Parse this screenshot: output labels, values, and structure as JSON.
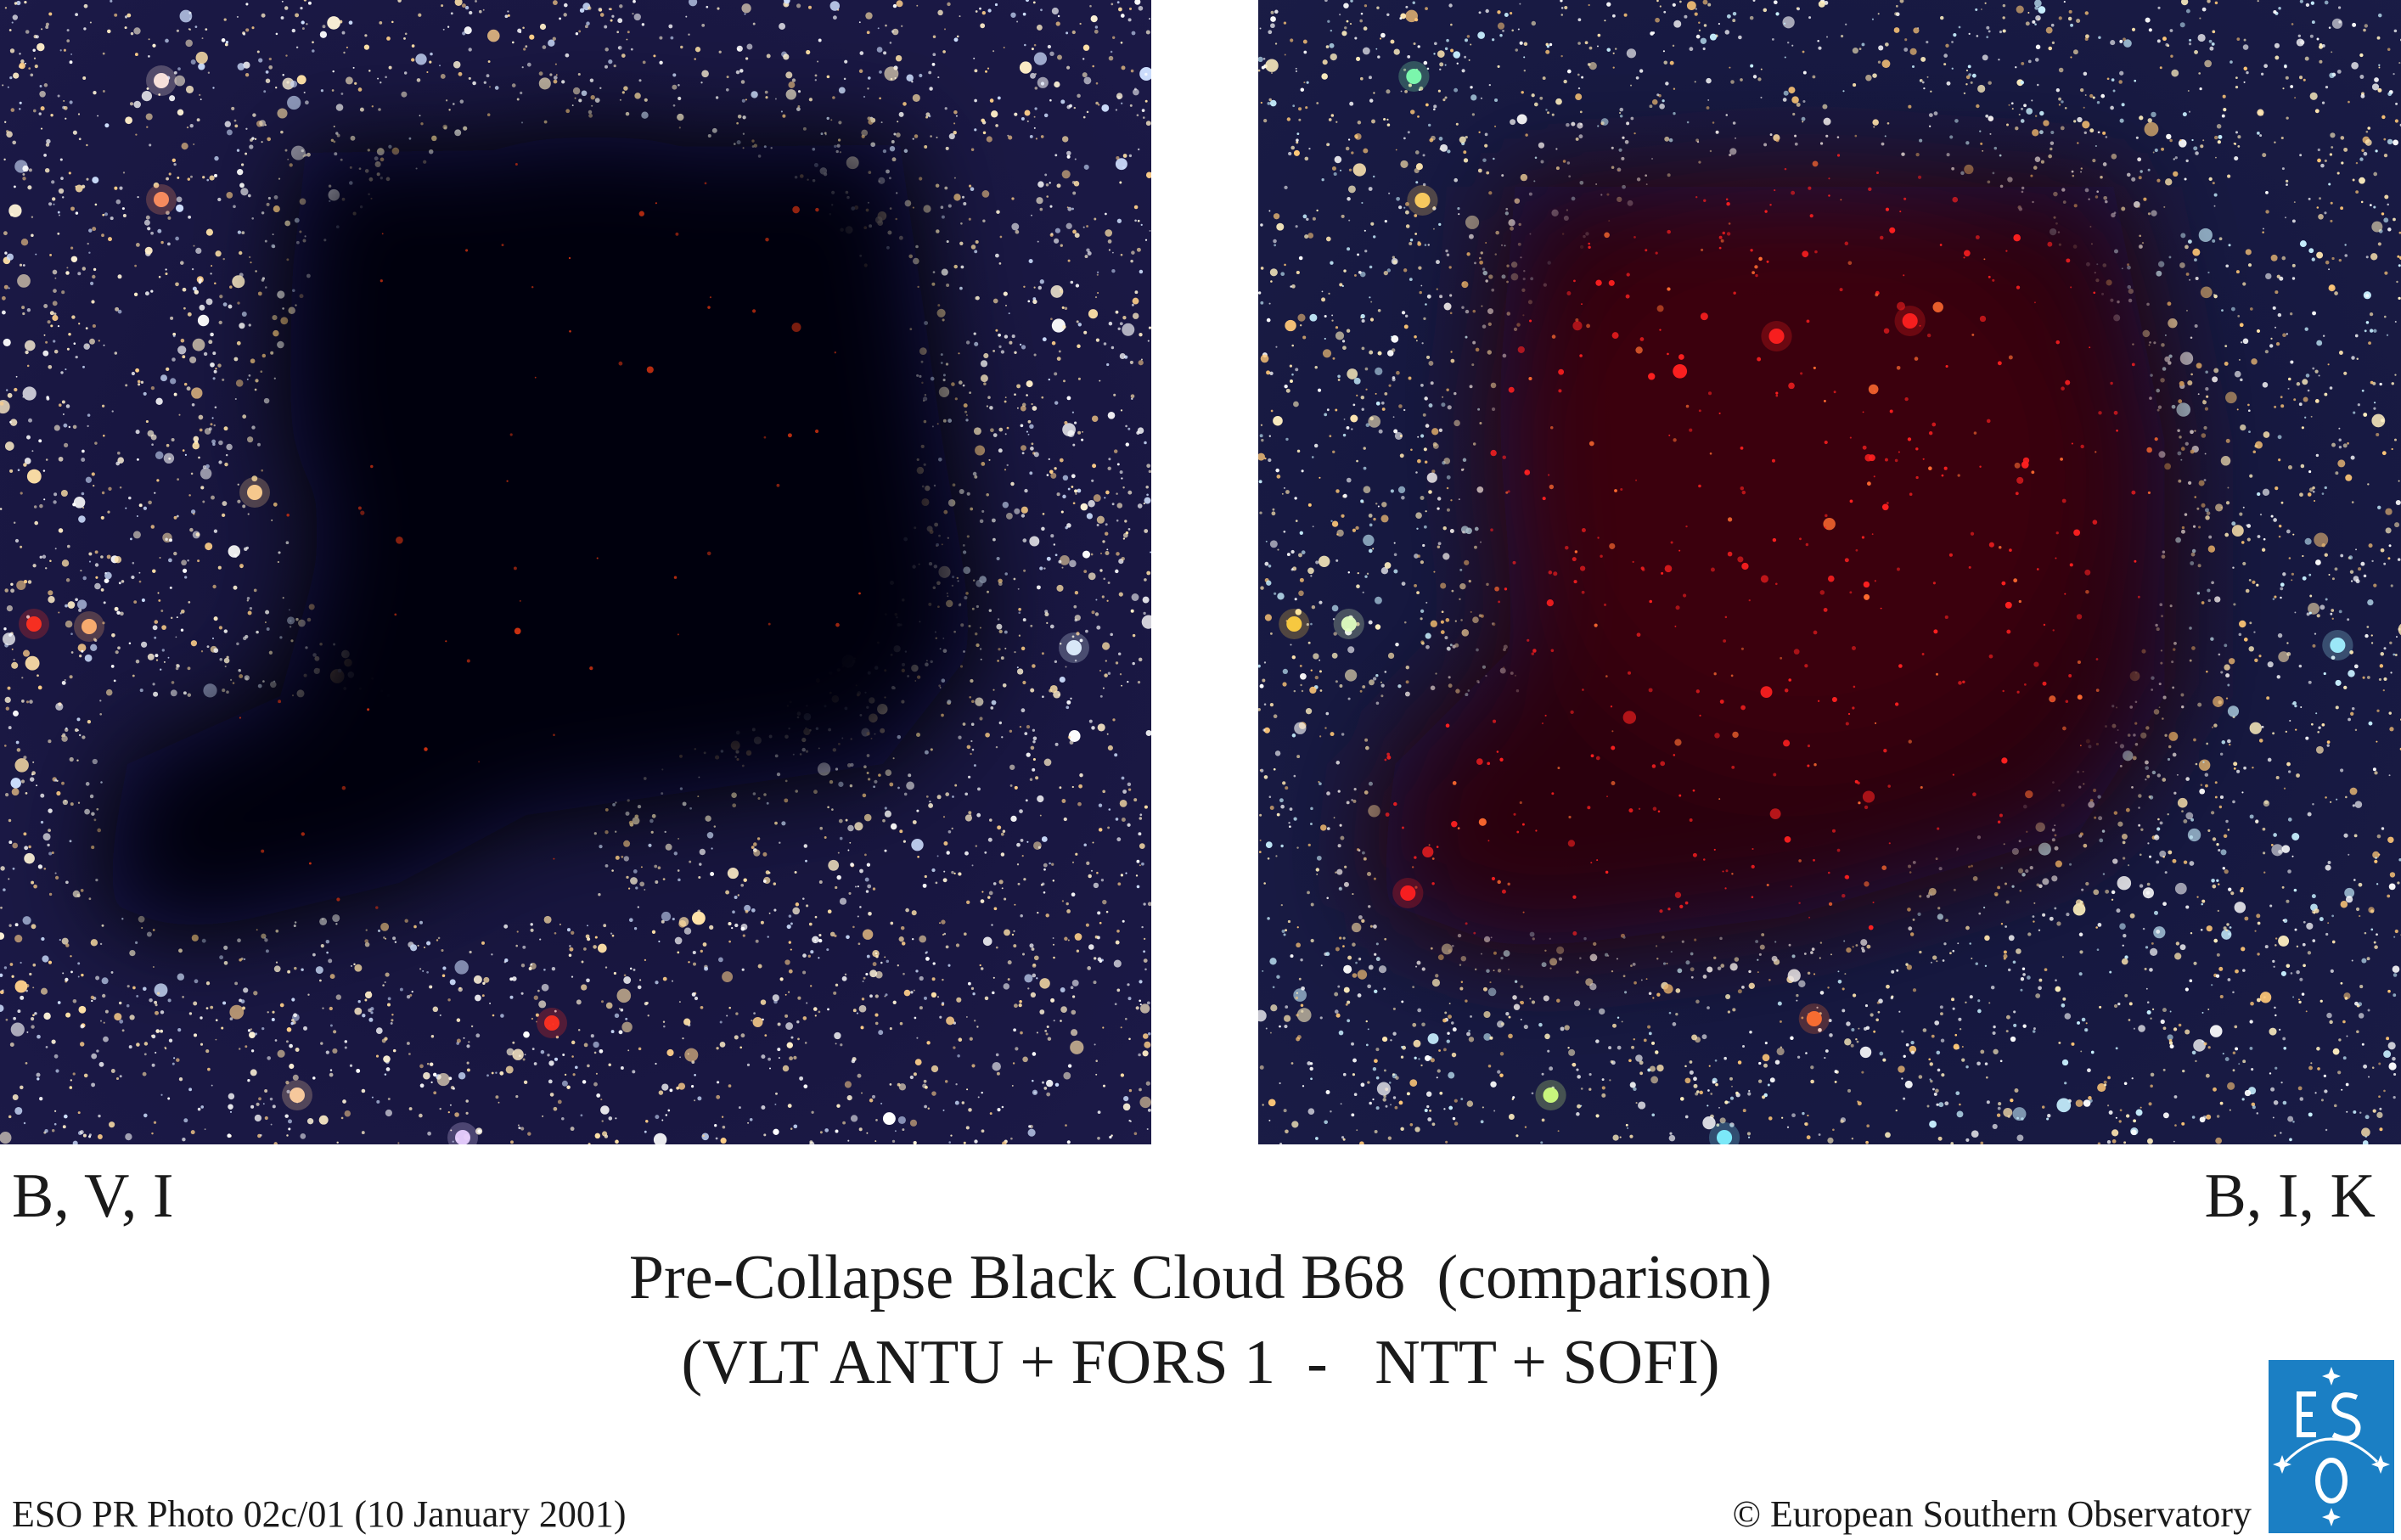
{
  "panels": [
    {
      "name": "B, V, I",
      "image": "dark-cloud-optical"
    },
    {
      "name": "B, I, K",
      "image": "dark-cloud-infrared"
    }
  ],
  "title": {
    "line1": "Pre-Collapse Black Cloud B68  (comparison)",
    "line2": "(VLT ANTU + FORS 1  -   NTT + SOFI)"
  },
  "footer": {
    "left": "ESO PR Photo 02c/01 (10 January 2001)",
    "right": "© European Southern Observatory"
  },
  "logo": {
    "text": "ESO",
    "color": "#1b7fc4"
  },
  "colors": {
    "sky_background": "#0a0a28",
    "cloud_core": "#02020a",
    "infrared_glow": "#c4101a"
  }
}
